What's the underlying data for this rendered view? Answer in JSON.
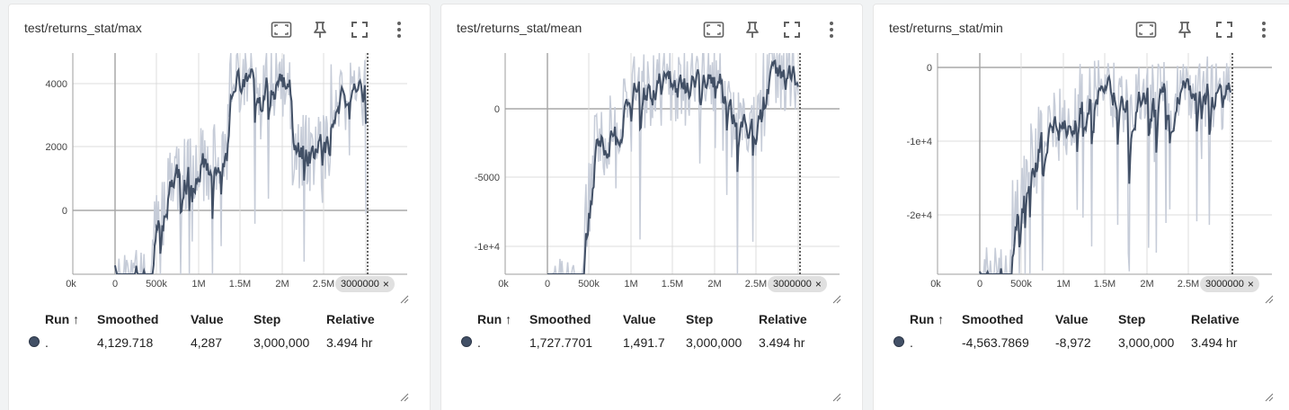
{
  "cards": [
    {
      "title": "test/returns_stat/max",
      "y_ticks": [
        "4000",
        "2000",
        "0"
      ],
      "x_ticks": [
        "0k",
        "0",
        "500k",
        "1M",
        "1.5M",
        "2M",
        "2.5M",
        "3M"
      ],
      "step_chip": "3000000",
      "columns": [
        "Run",
        "Smoothed",
        "Value",
        "Step",
        "Relative"
      ],
      "row": {
        "run": ".",
        "smoothed": "4,129.718",
        "value": "4,287",
        "step": "3,000,000",
        "relative": "3.494 hr"
      }
    },
    {
      "title": "test/returns_stat/mean",
      "y_ticks": [
        "0",
        "-5000",
        "-1e+4"
      ],
      "x_ticks": [
        "0k",
        "0",
        "500k",
        "1M",
        "1.5M",
        "2M",
        "2.5M",
        "3M"
      ],
      "step_chip": "3000000",
      "columns": [
        "Run",
        "Smoothed",
        "Value",
        "Step",
        "Relative"
      ],
      "row": {
        "run": ".",
        "smoothed": "1,727.7701",
        "value": "1,491.7",
        "step": "3,000,000",
        "relative": "3.494 hr"
      }
    },
    {
      "title": "test/returns_stat/min",
      "y_ticks": [
        "0",
        "-1e+4",
        "-2e+4"
      ],
      "x_ticks": [
        "0k",
        "0",
        "500k",
        "1M",
        "1.5M",
        "2M",
        "2.5M",
        "3M"
      ],
      "step_chip": "3000000",
      "columns": [
        "Run",
        "Smoothed",
        "Value",
        "Step",
        "Relative"
      ],
      "row": {
        "run": ".",
        "smoothed": "-4,563.7869",
        "value": "-8,972",
        "step": "3,000,000",
        "relative": "3.494 hr"
      }
    }
  ],
  "icons": [
    "fit-to-data-icon",
    "pin-icon",
    "fullscreen-icon",
    "more-vert-icon"
  ],
  "sort_indicator": "↑",
  "chip_close": "×",
  "colors": {
    "smoothed_line": "#425066",
    "raw_line": "#c6ccd8",
    "run_dot": "#425066",
    "grid": "#dcdcdc",
    "axis": "#a0a0a0"
  }
}
